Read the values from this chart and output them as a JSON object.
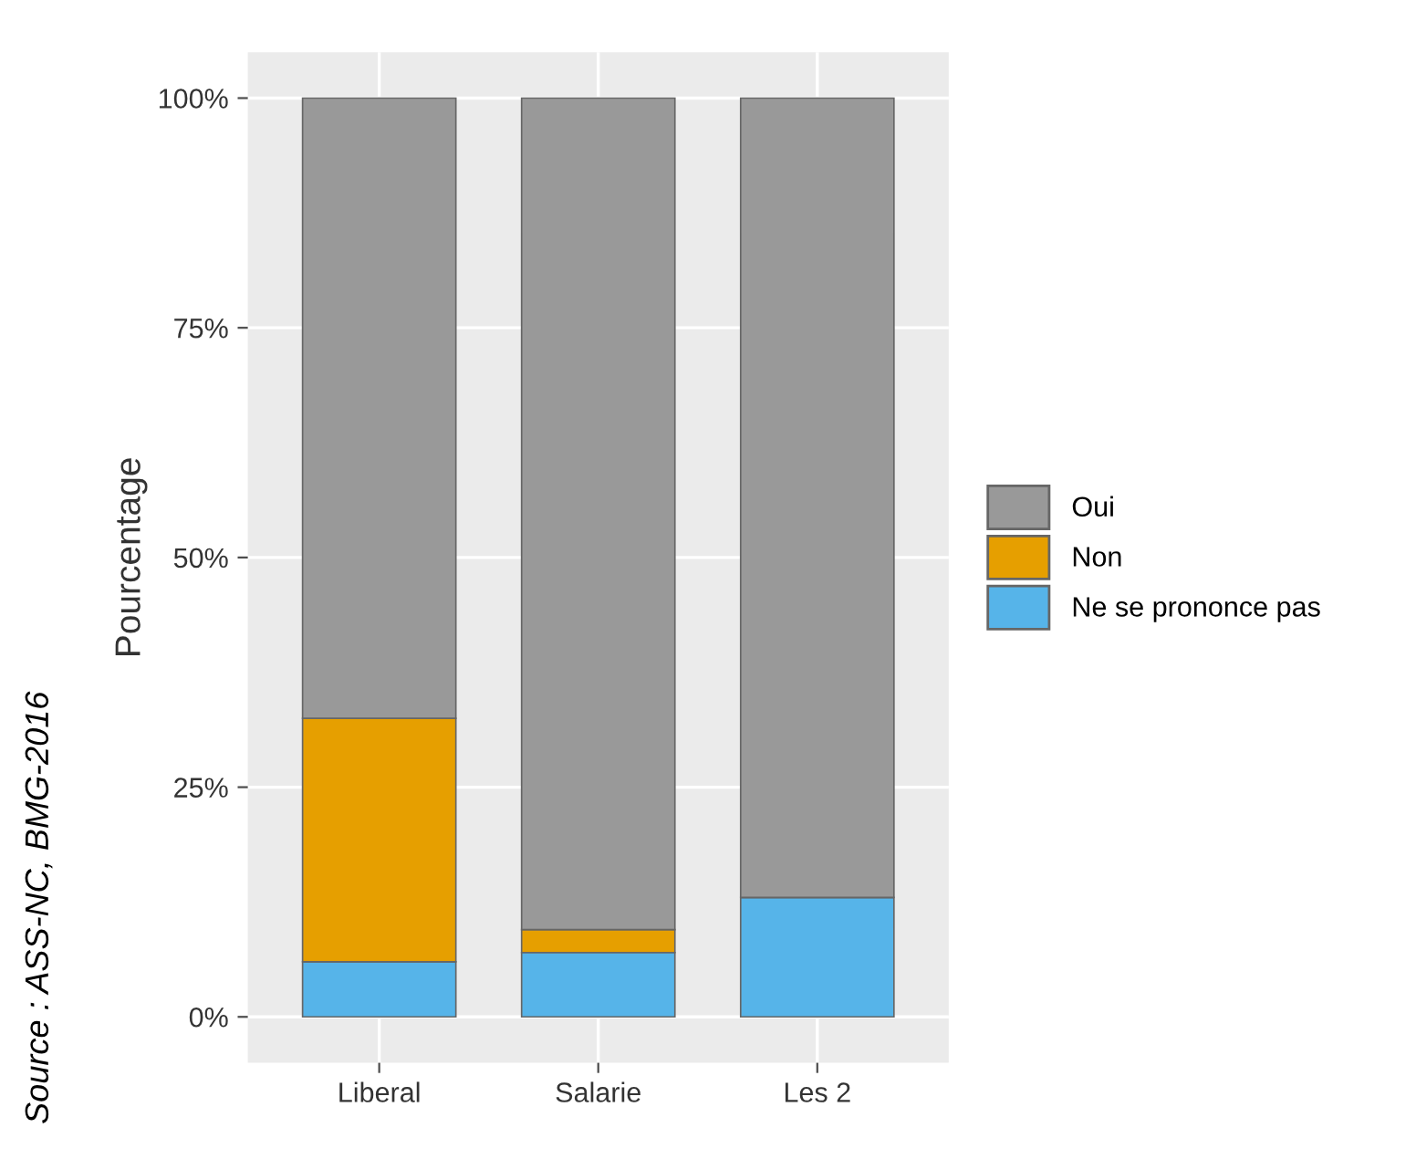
{
  "chart_data": {
    "type": "bar",
    "stacked": true,
    "categories": [
      "Liberal",
      "Salarie",
      "Les 2"
    ],
    "series": [
      {
        "name": "Ne se prononce pas",
        "color": "#56b4e9",
        "values": [
          6,
          7,
          13
        ]
      },
      {
        "name": "Non",
        "color": "#e69f00",
        "values": [
          26.5,
          2.5,
          0
        ]
      },
      {
        "name": "Oui",
        "color": "#999999",
        "values": [
          67.5,
          90.5,
          87
        ]
      }
    ],
    "ylabel": "Pourcentage",
    "ylim": [
      -5,
      105
    ],
    "yticks": [
      {
        "value": 0,
        "label": "0%"
      },
      {
        "value": 25,
        "label": "25%"
      },
      {
        "value": 50,
        "label": "50%"
      },
      {
        "value": 75,
        "label": "75%"
      },
      {
        "value": 100,
        "label": "100%"
      }
    ],
    "grid": true,
    "legend": "right",
    "annotations": [
      "Source : ASS-NC, BMG-2016"
    ]
  }
}
